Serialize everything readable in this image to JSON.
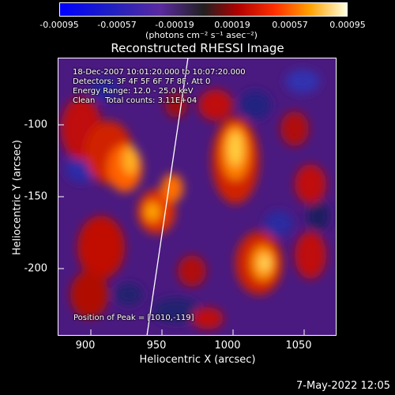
{
  "colorbar": {
    "tick_labels": [
      "-0.00095",
      "-0.00057",
      "-0.00019",
      "0.00019",
      "0.00057",
      "0.00095"
    ],
    "units": "(photons cm⁻² s⁻¹ asec⁻²)"
  },
  "plot": {
    "title": "Reconstructed RHESSI Image",
    "info_lines": [
      "18-Dec-2007 10:01:20.000 to 10:07:20.000",
      "Detectors: 3F 4F 5F 6F 7F 8F, Att 0",
      "Energy Range: 12.0 - 25.0 keV",
      "Clean    Total counts: 3.11E+04"
    ],
    "peak_text": "Position of Peak = [1010,-119]",
    "xlabel": "Heliocentric X (arcsec)",
    "ylabel": "Heliocentric Y (arcsec)",
    "x_ticks": [
      "900",
      "950",
      "1000",
      "1050"
    ],
    "y_ticks": [
      "-100",
      "-150",
      "-200"
    ]
  },
  "footer": {
    "date": "7-May-2022 12:05"
  },
  "colors": {
    "background": "#000000",
    "foreground": "#ffffff"
  }
}
